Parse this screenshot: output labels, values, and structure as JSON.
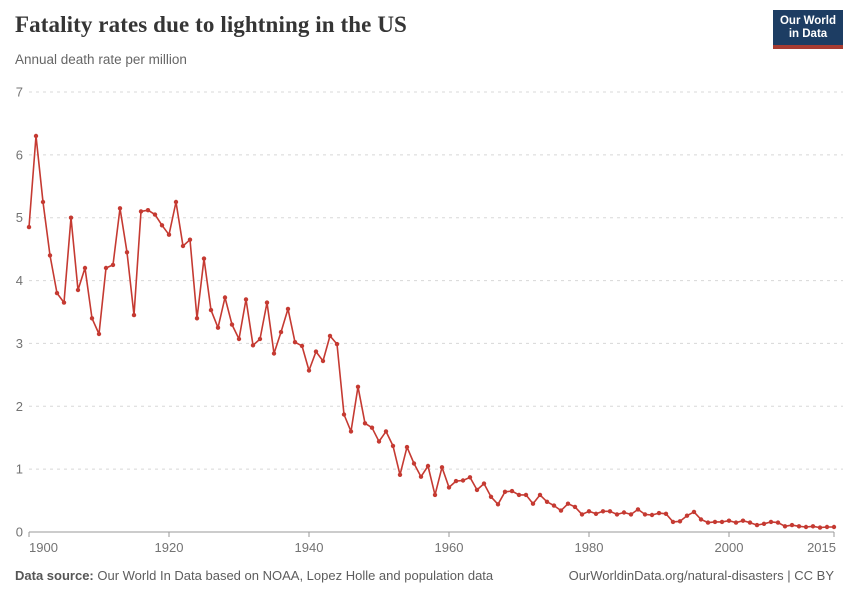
{
  "header": {
    "title": "Fatality rates due to lightning in the US",
    "subtitle": "Annual death rate per million"
  },
  "logo": {
    "line1": "Our World",
    "line2": "in Data"
  },
  "footer": {
    "source_label": "Data source:",
    "source_text": " Our World In Data based on NOAA, Lopez Holle and population data",
    "right_text": "OurWorldinData.org/natural-disasters | CC BY"
  },
  "colors": {
    "line": "#c53a32",
    "grid": "#d8d8d8",
    "axis": "#989898",
    "tick_text": "#737373",
    "logo_bg": "#1d3d63",
    "logo_stripe": "#a83c32"
  },
  "chart_data": {
    "type": "line",
    "title": "Fatality rates due to lightning in the US",
    "ylabel": "Annual death rate per million",
    "xlabel": "",
    "ylim": [
      0,
      7
    ],
    "xlim": [
      1900,
      2015
    ],
    "grid": "horizontal-dashed",
    "legend": "none",
    "marker": "circle",
    "xticks": [
      1900,
      1920,
      1940,
      1960,
      1980,
      2000,
      2015
    ],
    "yticks": [
      0,
      1,
      2,
      3,
      4,
      5,
      6,
      7
    ],
    "x": [
      1900,
      1901,
      1902,
      1903,
      1904,
      1905,
      1906,
      1907,
      1908,
      1909,
      1910,
      1911,
      1912,
      1913,
      1914,
      1915,
      1916,
      1917,
      1918,
      1919,
      1920,
      1921,
      1922,
      1923,
      1924,
      1925,
      1926,
      1927,
      1928,
      1929,
      1930,
      1931,
      1932,
      1933,
      1934,
      1935,
      1936,
      1937,
      1938,
      1939,
      1940,
      1941,
      1942,
      1943,
      1944,
      1945,
      1946,
      1947,
      1948,
      1949,
      1950,
      1951,
      1952,
      1953,
      1954,
      1955,
      1956,
      1957,
      1958,
      1959,
      1960,
      1961,
      1962,
      1963,
      1964,
      1965,
      1966,
      1967,
      1968,
      1969,
      1970,
      1971,
      1972,
      1973,
      1974,
      1975,
      1976,
      1977,
      1978,
      1979,
      1980,
      1981,
      1982,
      1983,
      1984,
      1985,
      1986,
      1987,
      1988,
      1989,
      1990,
      1991,
      1992,
      1993,
      1994,
      1995,
      1996,
      1997,
      1998,
      1999,
      2000,
      2001,
      2002,
      2003,
      2004,
      2005,
      2006,
      2007,
      2008,
      2009,
      2010,
      2011,
      2012,
      2013,
      2014,
      2015
    ],
    "values": [
      4.85,
      6.3,
      5.25,
      4.4,
      3.8,
      3.65,
      5.0,
      3.85,
      4.2,
      3.4,
      3.15,
      4.2,
      4.25,
      5.15,
      4.45,
      3.45,
      5.1,
      5.12,
      5.05,
      4.88,
      4.73,
      5.25,
      4.55,
      4.65,
      3.4,
      4.35,
      3.53,
      3.25,
      3.73,
      3.3,
      3.07,
      3.7,
      2.97,
      3.07,
      3.65,
      2.84,
      3.18,
      3.55,
      3.02,
      2.96,
      2.57,
      2.87,
      2.72,
      3.12,
      2.99,
      1.87,
      1.6,
      2.31,
      1.73,
      1.66,
      1.44,
      1.6,
      1.37,
      0.91,
      1.35,
      1.09,
      0.88,
      1.05,
      0.59,
      1.03,
      0.71,
      0.81,
      0.82,
      0.87,
      0.67,
      0.77,
      0.56,
      0.44,
      0.64,
      0.65,
      0.59,
      0.59,
      0.45,
      0.59,
      0.48,
      0.42,
      0.34,
      0.45,
      0.4,
      0.28,
      0.33,
      0.29,
      0.33,
      0.33,
      0.28,
      0.31,
      0.28,
      0.36,
      0.28,
      0.27,
      0.3,
      0.29,
      0.16,
      0.17,
      0.26,
      0.32,
      0.2,
      0.15,
      0.16,
      0.16,
      0.18,
      0.15,
      0.18,
      0.15,
      0.11,
      0.13,
      0.16,
      0.15,
      0.09,
      0.11,
      0.09,
      0.08,
      0.09,
      0.07,
      0.08,
      0.08
    ]
  }
}
